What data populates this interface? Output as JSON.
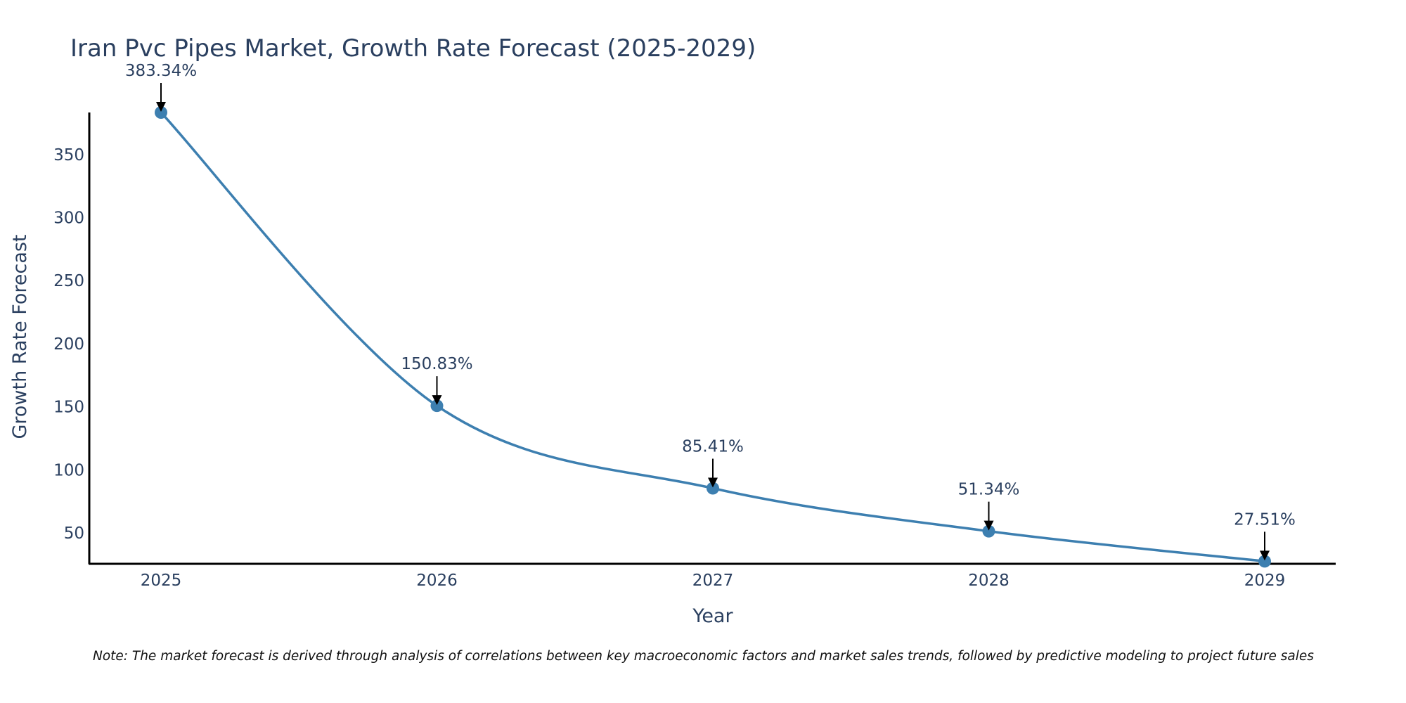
{
  "colors": {
    "line": "#3d7fb0",
    "text": "#2a3f5f",
    "axis": "#000000",
    "arrow": "#000000"
  },
  "chart_data": {
    "type": "line",
    "title": "Iran Pvc Pipes Market, Growth Rate Forecast (2025-2029)",
    "xlabel": "Year",
    "ylabel": "Growth Rate Forecast",
    "categories": [
      "2025",
      "2026",
      "2027",
      "2028",
      "2029"
    ],
    "series": [
      {
        "name": "Growth Rate Forecast",
        "values": [
          383.34,
          150.83,
          85.41,
          51.34,
          27.51
        ]
      }
    ],
    "data_labels": [
      "383.34%",
      "150.83%",
      "85.41%",
      "51.34%",
      "27.51%"
    ],
    "y_ticks": [
      50,
      100,
      150,
      200,
      250,
      300,
      350
    ],
    "y_tick_labels": [
      "50",
      "100",
      "150",
      "200",
      "250",
      "300",
      "350"
    ],
    "ylim": [
      25.5,
      383.34
    ],
    "grid": false,
    "note": "Note: The market forecast is derived through analysis of correlations between key macroeconomic factors and market sales trends, followed by predictive modeling to project future sales"
  }
}
